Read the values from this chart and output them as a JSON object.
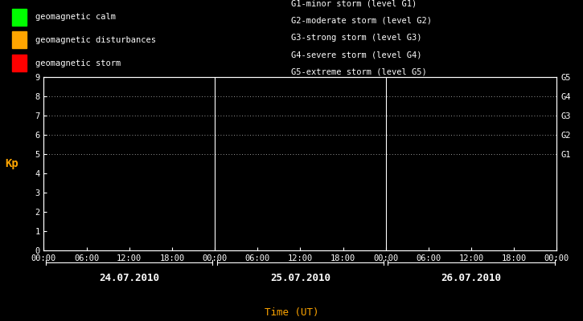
{
  "background_color": "#000000",
  "plot_bg_color": "#000000",
  "title": "Time (UT)",
  "title_color": "#FFA500",
  "ylabel": "Kp",
  "ylabel_color": "#FFA500",
  "ylim": [
    0,
    9
  ],
  "yticks": [
    0,
    1,
    2,
    3,
    4,
    5,
    6,
    7,
    8,
    9
  ],
  "tick_color": "#ffffff",
  "spine_color": "#ffffff",
  "grid_color": "#ffffff",
  "days": [
    "24.07.2010",
    "25.07.2010",
    "26.07.2010"
  ],
  "right_labels": [
    "G5",
    "G4",
    "G3",
    "G2",
    "G1"
  ],
  "right_label_yvals": [
    9,
    8,
    7,
    6,
    5
  ],
  "dotted_yvals": [
    5,
    6,
    7,
    8,
    9
  ],
  "legend_items": [
    {
      "label": "geomagnetic calm",
      "color": "#00ff00"
    },
    {
      "label": "geomagnetic disturbances",
      "color": "#ffa500"
    },
    {
      "label": "geomagnetic storm",
      "color": "#ff0000"
    }
  ],
  "right_legend_lines": [
    "G1-minor storm (level G1)",
    "G2-moderate storm (level G2)",
    "G3-strong storm (level G3)",
    "G4-severe storm (level G4)",
    "G5-extreme storm (level G5)"
  ],
  "font_family": "monospace",
  "font_size": 7.5,
  "legend_font_size": 7.5,
  "day_font_size": 9,
  "ylabel_font_size": 10
}
